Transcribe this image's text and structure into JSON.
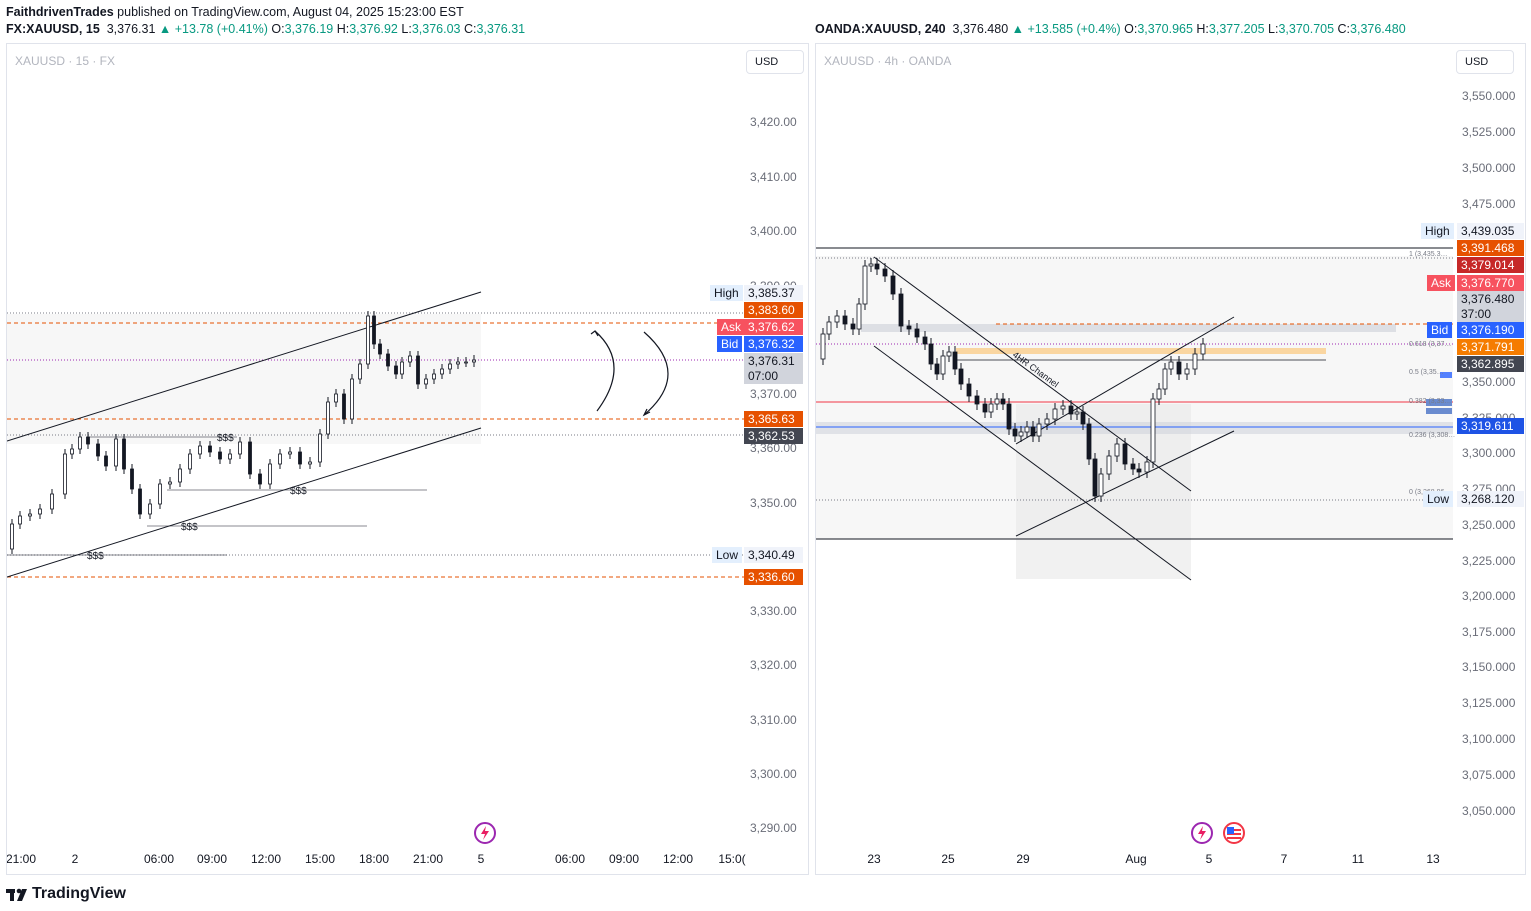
{
  "header": {
    "author": "FaithdrivenTrades",
    "published": "published on TradingView.com, August 04, 2025 15:23:00 EST"
  },
  "left": {
    "symbol": "FX:XAUUSD, 15",
    "last": "3,376.31",
    "change": "+13.78 (+0.41%)",
    "o_label": "O:",
    "o": "3,376.19",
    "h_label": "H:",
    "h": "3,376.92",
    "l_label": "L:",
    "l": "3,376.03",
    "c_label": "C:",
    "c": "3,376.31",
    "watermark": "XAUUSD · 15 · FX",
    "currency": "USD",
    "price_axis": [
      "3,420.00",
      "3,410.00",
      "3,400.00",
      "3,390.00",
      "3,370.00",
      "3,360.00",
      "3,350.00",
      "3,330.00",
      "3,320.00",
      "3,310.00",
      "3,300.00",
      "3,290.00"
    ],
    "time_axis": [
      "21:00",
      "2",
      "06:00",
      "09:00",
      "12:00",
      "15:00",
      "18:00",
      "21:00",
      "5",
      "06:00",
      "09:00",
      "12:00",
      "15:0("
    ],
    "tags": {
      "high_label": "High",
      "high": "3,385.37",
      "lvl1": "3,383.60",
      "ask_label": "Ask",
      "ask": "3,376.62",
      "bid_label": "Bid",
      "bid": "3,376.32",
      "last": "3,376.31",
      "countdown": "07:00",
      "lvl2": "3,365.63",
      "lvl3": "3,362.53",
      "low_label": "Low",
      "low": "3,340.49",
      "lvl4": "3,336.60"
    },
    "liquidity_labels": [
      "$$$",
      "$$$",
      "$$$",
      "$$$"
    ]
  },
  "right": {
    "symbol": "OANDA:XAUUSD, 240",
    "last": "3,376.480",
    "change": "+13.585 (+0.4%)",
    "o_label": "O:",
    "o": "3,370.965",
    "h_label": "H:",
    "h": "3,377.205",
    "l_label": "L:",
    "l": "3,370.705",
    "c_label": "C:",
    "c": "3,376.480",
    "watermark": "XAUUSD · 4h · OANDA",
    "currency": "USD",
    "price_axis": [
      "3,550.000",
      "3,525.000",
      "3,500.000",
      "3,475.000",
      "3,350.000",
      "3,325.000",
      "3,300.000",
      "3,275.000",
      "3,250.000",
      "3,225.000",
      "3,200.000",
      "3,175.000",
      "3,150.000",
      "3,125.000",
      "3,100.000",
      "3,075.000",
      "3,050.000"
    ],
    "time_axis": [
      "23",
      "25",
      "29",
      "Aug",
      "5",
      "7",
      "11",
      "13"
    ],
    "channel_label": "4HR Channel",
    "fib": [
      "1 (3,435.3…",
      "0.618 (3,37…",
      "0.5 (3,35…",
      "0.382 (3,33…",
      "0.236 (3,308…",
      "0 (3,268.96…"
    ],
    "tags": {
      "high_label": "High",
      "high": "3,439.035",
      "lvl1": "3,391.468",
      "lvl2": "3,379.014",
      "ask_label": "Ask",
      "ask": "3,376.770",
      "last": "3,376.480",
      "countdown": "37:00",
      "bid_label": "Bid",
      "bid": "3,376.190",
      "lvl3": "3,371.791",
      "lvl4": "3,362.895",
      "lvl5": "3,319.611",
      "low_label": "Low",
      "low": "3,268.120"
    }
  },
  "footer": {
    "brand": "TradingView"
  },
  "colors": {
    "up": "#089981",
    "down": "#f23645",
    "ask": "#f7525f",
    "bid": "#2962ff",
    "level": "#e65100"
  }
}
